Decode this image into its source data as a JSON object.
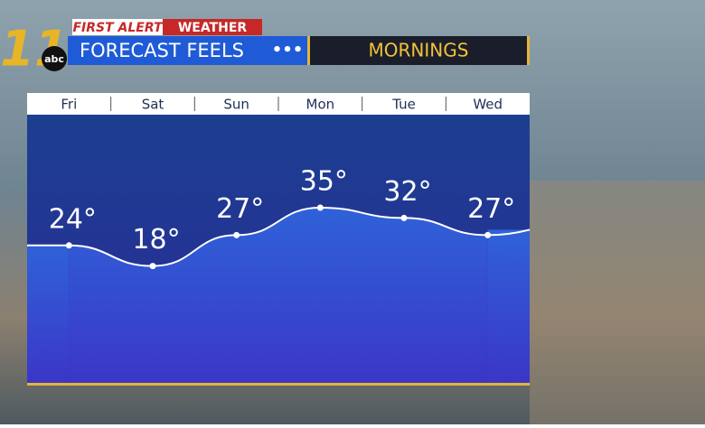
{
  "chart_data": {
    "type": "line",
    "title": "FORECAST FEELS",
    "subtitle": "MORNINGS",
    "annotations": [
      "FIRST ALERT",
      "WEATHER",
      "11",
      "abc"
    ],
    "categories": [
      "Fri",
      "Sat",
      "Sun",
      "Mon",
      "Tue",
      "Wed"
    ],
    "values": [
      24,
      18,
      27,
      35,
      32,
      27
    ],
    "value_labels": [
      "24°",
      "18°",
      "27°",
      "35°",
      "32°",
      "27°"
    ],
    "color": "#ffffff"
  }
}
